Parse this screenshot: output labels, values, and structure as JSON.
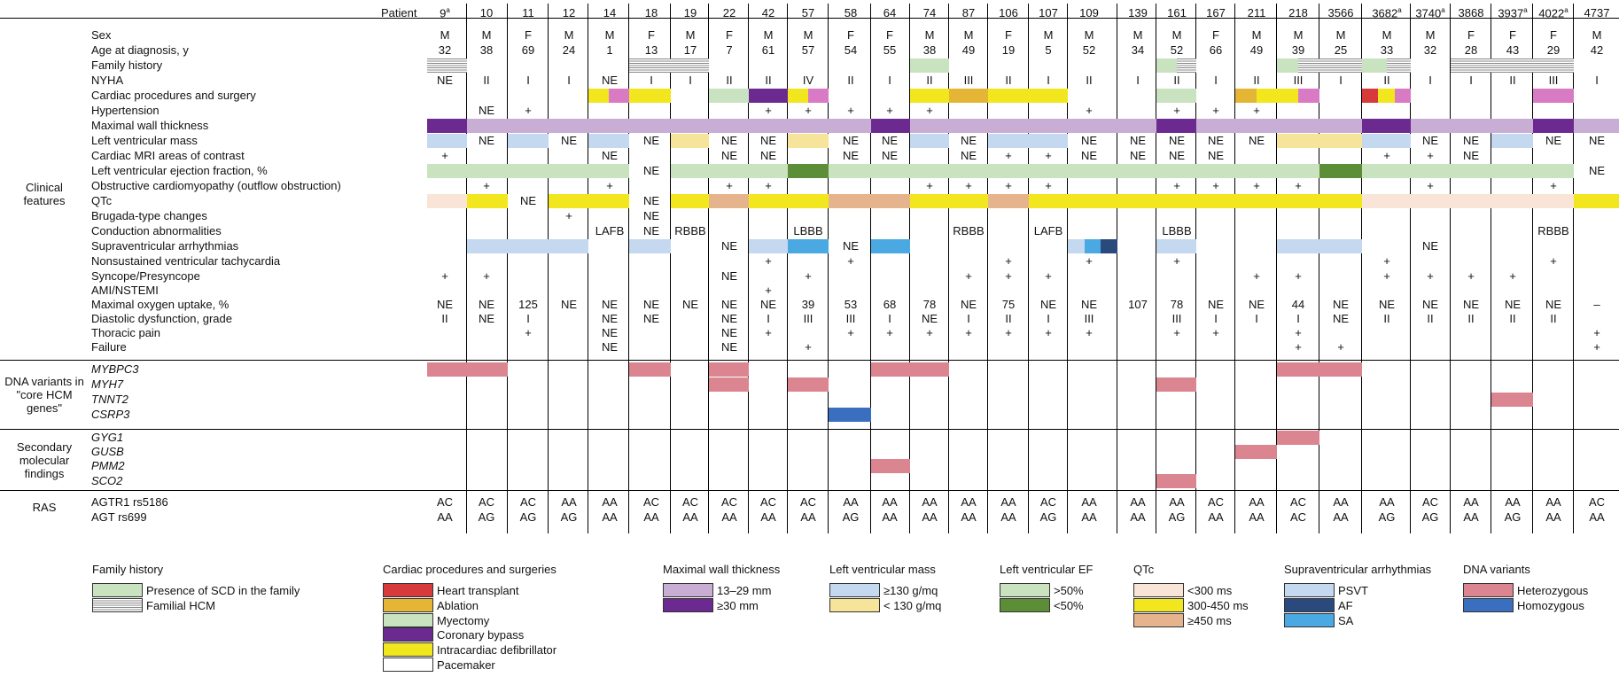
{
  "patient_label": "Patient",
  "patients": [
    "9",
    "10",
    "11",
    "12",
    "14",
    "18",
    "19",
    "22",
    "42",
    "57",
    "58",
    "64",
    "74",
    "87",
    "106",
    "107",
    "109",
    "139",
    "161",
    "167",
    "211",
    "218",
    "3566",
    "3682",
    "3740",
    "3868",
    "3937",
    "4022",
    "4737"
  ],
  "patient_superscripts": {
    "9": "a",
    "3682": "a",
    "3740": "a",
    "3937": "a",
    "4022": "a"
  },
  "colors": {
    "heterozygous": "#da8590",
    "homozygous": "#3a6fc0",
    "mwt_13_29": "#c8aed5",
    "mwt_ge30": "#6c2a90",
    "lvm_ge130": "#c4d8ef",
    "lvm_lt130": "#f5e49a",
    "ef_gt50": "#c9e2c0",
    "ef_lt50": "#5c8e38",
    "qtc_lt300": "#f9e5d7",
    "qtc_300_450": "#f2e71e",
    "qtc_ge450": "#e6b48c",
    "psvt": "#c4d8ef",
    "af": "#2a4a7e",
    "sa": "#4aa8e2",
    "transplant": "#d63a3a",
    "ablation": "#e5b536",
    "myectomy": "#c9e2c0",
    "bypass": "#6c2a90",
    "defibrillator": "#f2e71e",
    "pacemaker": "#d87bc4"
  },
  "groups": [
    {
      "id": "clinical",
      "lines": [
        "Clinical",
        "features"
      ]
    },
    {
      "id": "dna",
      "lines": [
        "DNA variants in",
        "\"core HCM",
        "genes\""
      ]
    },
    {
      "id": "secondary",
      "lines": [
        "Secondary",
        "molecular",
        "findings"
      ]
    },
    {
      "id": "ras",
      "lines": [
        "RAS"
      ]
    }
  ],
  "rows": {
    "sex": "Sex",
    "age": "Age at diagnosis, y",
    "family": "Family history",
    "nyha": "NYHA",
    "procedures": "Cardiac procedures and surgery",
    "hypertension": "Hypertension",
    "mwt": "Maximal wall thickness",
    "lvm": "Left ventricular mass",
    "mri": "Cardiac MRI areas of contrast",
    "lvef": "Left ventricular ejection fraction, %",
    "obstructive": "Obstructive cardiomyopathy (outflow obstruction)",
    "qtc": "QTc",
    "brugada": "Brugada-type changes",
    "conduction": "Conduction abnormalities",
    "svt": "Supraventricular arrhythmias",
    "nsvt": "Nonsustained ventricular tachycardia",
    "syncope": "Syncope/Presyncope",
    "ami": "AMI/NSTEMI",
    "vo2": "Maximal oxygen uptake, %",
    "diastolic": "Diastolic dysfunction, grade",
    "thoracic": "Thoracic pain",
    "failure": "Failure",
    "mybpc3": "MYBPC3",
    "myh7": "MYH7",
    "tnnt2": "TNNT2",
    "csrp3": "CSRP3",
    "gyg1": "GYG1",
    "gusb": "GUSB",
    "pmm2": "PMM2",
    "sco2": "SCO2",
    "agtr1": "AGTR1 rs5186",
    "agt": "AGT rs699"
  },
  "text_values": {
    "sex": {
      "9": "M",
      "10": "M",
      "11": "F",
      "12": "M",
      "14": "M",
      "18": "F",
      "19": "M",
      "22": "F",
      "42": "M",
      "57": "M",
      "58": "F",
      "64": "F",
      "74": "M",
      "87": "M",
      "106": "F",
      "107": "M",
      "109": "M",
      "139": "M",
      "161": "M",
      "167": "F",
      "211": "M",
      "218": "M",
      "3566": "M",
      "3682": "M",
      "3740": "M",
      "3868": "F",
      "3937": "F",
      "4022": "F",
      "4737": "M"
    },
    "age": {
      "9": "32",
      "10": "38",
      "11": "69",
      "12": "24",
      "14": "1",
      "18": "13",
      "19": "17",
      "22": "7",
      "42": "61",
      "57": "57",
      "58": "54",
      "64": "55",
      "74": "38",
      "87": "49",
      "106": "19",
      "107": "5",
      "109": "52",
      "139": "34",
      "161": "52",
      "167": "66",
      "211": "49",
      "218": "39",
      "3566": "25",
      "3682": "33",
      "3740": "32",
      "3868": "28",
      "3937": "43",
      "4022": "29",
      "4737": "42"
    },
    "nyha": {
      "9": "NE",
      "10": "II",
      "11": "I",
      "12": "I",
      "14": "NE",
      "18": "I",
      "19": "I",
      "22": "II",
      "42": "II",
      "57": "IV",
      "58": "II",
      "64": "I",
      "74": "II",
      "87": "III",
      "106": "II",
      "107": "I",
      "109": "II",
      "139": "I",
      "161": "II",
      "167": "I",
      "211": "II",
      "218": "III",
      "3566": "I",
      "3682": "II",
      "3740": "I",
      "3868": "I",
      "3937": "II",
      "4022": "III",
      "4737": "I"
    },
    "hypertension": {
      "10": "NE",
      "11": "+",
      "42": "+",
      "57": "+",
      "58": "+",
      "64": "+",
      "74": "+",
      "109": "+",
      "161": "+",
      "167": "+",
      "211": "+"
    },
    "lvm": {
      "10": "NE",
      "12": "NE",
      "18": "NE",
      "22": "NE",
      "42": "NE",
      "58": "NE",
      "64": "NE",
      "87": "NE",
      "109": "NE",
      "139": "NE",
      "161": "NE",
      "167": "NE",
      "211": "NE",
      "3740": "NE",
      "3868": "NE",
      "4022": "NE",
      "4737": "NE"
    },
    "mri": {
      "9": "+",
      "14": "NE",
      "22": "NE",
      "42": "NE",
      "58": "NE",
      "64": "NE",
      "87": "NE",
      "106": "+",
      "107": "+",
      "109": "NE",
      "139": "NE",
      "161": "NE",
      "167": "NE",
      "3682": "+",
      "3740": "+",
      "3868": "NE"
    },
    "lvef": {
      "18": "NE",
      "4737": "NE"
    },
    "obstructive": {
      "10": "+",
      "14": "+",
      "22": "+",
      "42": "+",
      "74": "+",
      "87": "+",
      "106": "+",
      "107": "+",
      "161": "+",
      "167": "+",
      "211": "+",
      "218": "+",
      "3740": "+",
      "4022": "+"
    },
    "qtc": {
      "11": "NE",
      "18": "NE"
    },
    "brugada": {
      "12": "+",
      "18": "NE"
    },
    "conduction": {
      "14": "LAFB",
      "18": "NE",
      "19": "RBBB",
      "57": "LBBB",
      "87": "RBBB",
      "107": "LAFB",
      "161": "LBBB",
      "4022": "RBBB"
    },
    "svt": {
      "22": "NE",
      "58": "NE",
      "3740": "NE"
    },
    "nsvt": {
      "42": "+",
      "58": "+",
      "106": "+",
      "109": "+",
      "161": "+",
      "3682": "+",
      "4022": "+"
    },
    "syncope": {
      "9": "+",
      "10": "+",
      "22": "NE",
      "57": "+",
      "87": "+",
      "106": "+",
      "107": "+",
      "211": "+",
      "218": "+",
      "3682": "+",
      "3740": "+",
      "3868": "+",
      "3937": "+"
    },
    "ami": {
      "42": "+"
    },
    "vo2": {
      "9": "NE",
      "10": "NE",
      "11": "125",
      "12": "NE",
      "14": "NE",
      "18": "NE",
      "19": "NE",
      "22": "NE",
      "42": "NE",
      "57": "39",
      "58": "53",
      "64": "68",
      "74": "78",
      "87": "NE",
      "106": "75",
      "107": "NE",
      "109": "NE",
      "139": "107",
      "161": "78",
      "167": "NE",
      "211": "NE",
      "218": "44",
      "3566": "NE",
      "3682": "NE",
      "3740": "NE",
      "3868": "NE",
      "3937": "NE",
      "4022": "NE",
      "4737": "–"
    },
    "diastolic": {
      "9": "II",
      "10": "NE",
      "11": "I",
      "14": "NE",
      "18": "NE",
      "22": "NE",
      "42": "I",
      "57": "III",
      "58": "III",
      "64": "I",
      "74": "NE",
      "87": "I",
      "106": "II",
      "107": "I",
      "109": "III",
      "161": "III",
      "167": "I",
      "211": "I",
      "218": "I",
      "3566": "NE",
      "3682": "II",
      "3740": "II",
      "3868": "II",
      "3937": "II",
      "4022": "II"
    },
    "thoracic": {
      "11": "+",
      "14": "NE",
      "22": "NE",
      "42": "+",
      "58": "+",
      "64": "+",
      "74": "+",
      "87": "+",
      "106": "+",
      "107": "+",
      "109": "+",
      "161": "+",
      "167": "+",
      "218": "+",
      "4737": "+"
    },
    "failure": {
      "14": "NE",
      "22": "NE",
      "57": "+",
      "218": "+",
      "3566": "+",
      "4737": "+"
    },
    "agtr1": {
      "9": "AC",
      "10": "AC",
      "11": "AC",
      "12": "AA",
      "14": "AA",
      "18": "AC",
      "19": "AC",
      "22": "AC",
      "42": "AC",
      "57": "AC",
      "58": "AA",
      "64": "AA",
      "74": "AA",
      "87": "AA",
      "106": "AA",
      "107": "AC",
      "109": "AA",
      "139": "AA",
      "161": "AA",
      "167": "AC",
      "211": "AA",
      "218": "AC",
      "3566": "AA",
      "3682": "AA",
      "3740": "AC",
      "3868": "AA",
      "3937": "AA",
      "4022": "AA",
      "4737": "AC"
    },
    "agt": {
      "9": "AA",
      "10": "AG",
      "11": "AG",
      "12": "AG",
      "14": "AA",
      "18": "AA",
      "19": "AA",
      "22": "AA",
      "42": "AA",
      "57": "AA",
      "58": "AG",
      "64": "AA",
      "74": "AA",
      "87": "AA",
      "106": "AA",
      "107": "AG",
      "109": "AA",
      "139": "AA",
      "161": "AG",
      "167": "AA",
      "211": "AA",
      "218": "AC",
      "3566": "AA",
      "3682": "AG",
      "3740": "AG",
      "3868": "AA",
      "3937": "AG",
      "4022": "AA",
      "4737": "AA"
    }
  },
  "color_values": {
    "family": {
      "9": [
        "hatch"
      ],
      "18": [
        "hatch"
      ],
      "19": [
        "hatch"
      ],
      "74": [
        "myectomy"
      ],
      "161": [
        "myectomy",
        "hatch"
      ],
      "218": [
        "myectomy",
        "hatch"
      ],
      "3566": [
        "hatch"
      ],
      "3682": [
        "myectomy",
        "hatch"
      ],
      "3868": [
        "hatch"
      ],
      "3937": [
        "hatch"
      ],
      "4022": [
        "hatch"
      ]
    },
    "procedures": {
      "14": [
        "defibrillator",
        "pacemaker"
      ],
      "18": [
        "defibrillator"
      ],
      "22": [
        "myectomy"
      ],
      "42": [
        "bypass"
      ],
      "57": [
        "defibrillator",
        "pacemaker"
      ],
      "74": [
        "defibrillator"
      ],
      "87": [
        "ablation"
      ],
      "106": [
        "defibrillator"
      ],
      "107": [
        "defibrillator"
      ],
      "161": [
        "myectomy"
      ],
      "211": [
        "ablation",
        "defibrillator"
      ],
      "218": [
        "defibrillator",
        "pacemaker"
      ],
      "3682": [
        "transplant",
        "defibrillator",
        "pacemaker"
      ],
      "4022": [
        "pacemaker"
      ]
    },
    "mwt": {
      "9": [
        "mwt_ge30"
      ],
      "10": [
        "mwt_13_29"
      ],
      "11": [
        "mwt_13_29"
      ],
      "12": [
        "mwt_13_29"
      ],
      "14": [
        "mwt_13_29"
      ],
      "18": [
        "mwt_13_29"
      ],
      "19": [
        "mwt_13_29"
      ],
      "22": [
        "mwt_13_29"
      ],
      "42": [
        "mwt_13_29"
      ],
      "57": [
        "mwt_13_29"
      ],
      "58": [
        "mwt_13_29"
      ],
      "64": [
        "mwt_ge30"
      ],
      "74": [
        "mwt_13_29"
      ],
      "87": [
        "mwt_13_29"
      ],
      "106": [
        "mwt_13_29"
      ],
      "107": [
        "mwt_13_29"
      ],
      "109": [
        "mwt_13_29"
      ],
      "139": [
        "mwt_13_29"
      ],
      "161": [
        "mwt_ge30"
      ],
      "167": [
        "mwt_13_29"
      ],
      "211": [
        "mwt_13_29"
      ],
      "218": [
        "mwt_13_29"
      ],
      "3566": [
        "mwt_13_29"
      ],
      "3682": [
        "mwt_ge30"
      ],
      "3740": [
        "mwt_13_29"
      ],
      "3868": [
        "mwt_13_29"
      ],
      "3937": [
        "mwt_13_29"
      ],
      "4022": [
        "mwt_ge30"
      ],
      "4737": [
        "mwt_13_29"
      ]
    },
    "lvm": {
      "9": [
        "lvm_ge130"
      ],
      "11": [
        "lvm_ge130"
      ],
      "14": [
        "lvm_ge130"
      ],
      "19": [
        "lvm_lt130"
      ],
      "57": [
        "lvm_lt130"
      ],
      "74": [
        "lvm_ge130"
      ],
      "106": [
        "lvm_ge130"
      ],
      "107": [
        "lvm_ge130"
      ],
      "218": [
        "lvm_lt130"
      ],
      "3566": [
        "lvm_lt130"
      ],
      "3682": [
        "lvm_ge130"
      ],
      "3937": [
        "lvm_ge130"
      ]
    },
    "lvef": {
      "9": [
        "ef_gt50"
      ],
      "10": [
        "ef_gt50"
      ],
      "11": [
        "ef_gt50"
      ],
      "12": [
        "ef_gt50"
      ],
      "14": [
        "ef_gt50"
      ],
      "19": [
        "ef_gt50"
      ],
      "22": [
        "ef_gt50"
      ],
      "42": [
        "ef_gt50"
      ],
      "57": [
        "ef_lt50"
      ],
      "58": [
        "ef_gt50"
      ],
      "64": [
        "ef_gt50"
      ],
      "74": [
        "ef_gt50"
      ],
      "87": [
        "ef_gt50"
      ],
      "106": [
        "ef_gt50"
      ],
      "107": [
        "ef_gt50"
      ],
      "109": [
        "ef_gt50"
      ],
      "139": [
        "ef_gt50"
      ],
      "161": [
        "ef_gt50"
      ],
      "167": [
        "ef_gt50"
      ],
      "211": [
        "ef_gt50"
      ],
      "218": [
        "ef_gt50"
      ],
      "3566": [
        "ef_lt50"
      ],
      "3682": [
        "ef_gt50"
      ],
      "3740": [
        "ef_gt50"
      ],
      "3868": [
        "ef_gt50"
      ],
      "3937": [
        "ef_gt50"
      ],
      "4022": [
        "ef_gt50"
      ]
    },
    "qtc": {
      "9": [
        "qtc_lt300"
      ],
      "10": [
        "qtc_300_450"
      ],
      "12": [
        "qtc_300_450"
      ],
      "14": [
        "qtc_300_450"
      ],
      "19": [
        "qtc_300_450"
      ],
      "22": [
        "qtc_ge450"
      ],
      "42": [
        "qtc_300_450"
      ],
      "57": [
        "qtc_300_450"
      ],
      "58": [
        "qtc_ge450"
      ],
      "64": [
        "qtc_ge450"
      ],
      "74": [
        "qtc_300_450"
      ],
      "87": [
        "qtc_300_450"
      ],
      "106": [
        "qtc_ge450"
      ],
      "107": [
        "qtc_300_450"
      ],
      "109": [
        "qtc_300_450"
      ],
      "139": [
        "qtc_300_450"
      ],
      "161": [
        "qtc_300_450"
      ],
      "167": [
        "qtc_300_450"
      ],
      "211": [
        "qtc_300_450"
      ],
      "218": [
        "qtc_300_450"
      ],
      "3566": [
        "qtc_300_450"
      ],
      "3682": [
        "qtc_lt300"
      ],
      "3740": [
        "qtc_lt300"
      ],
      "3868": [
        "qtc_lt300"
      ],
      "3937": [
        "qtc_lt300"
      ],
      "4022": [
        "qtc_lt300"
      ],
      "4737": [
        "qtc_300_450"
      ]
    },
    "svt": {
      "10": [
        "psvt"
      ],
      "11": [
        "psvt"
      ],
      "12": [
        "psvt"
      ],
      "18": [
        "psvt"
      ],
      "42": [
        "psvt"
      ],
      "57": [
        "sa"
      ],
      "64": [
        "sa"
      ],
      "109": [
        "psvt",
        "sa",
        "af"
      ],
      "161": [
        "psvt"
      ],
      "218": [
        "psvt"
      ],
      "3566": [
        "psvt"
      ]
    },
    "mybpc3": {
      "9": [
        "heterozygous"
      ],
      "10": [
        "heterozygous"
      ],
      "18": [
        "heterozygous"
      ],
      "22": [
        "heterozygous"
      ],
      "64": [
        "heterozygous"
      ],
      "74": [
        "heterozygous"
      ],
      "218": [
        "heterozygous"
      ],
      "3566": [
        "heterozygous"
      ]
    },
    "myh7": {
      "22": [
        "heterozygous"
      ],
      "57": [
        "heterozygous"
      ],
      "161": [
        "heterozygous"
      ]
    },
    "tnnt2": {
      "3937": [
        "heterozygous"
      ]
    },
    "csrp3": {
      "58": [
        "homozygous"
      ]
    },
    "gyg1": {
      "218": [
        "heterozygous"
      ]
    },
    "gusb": {
      "211": [
        "heterozygous"
      ]
    },
    "pmm2": {
      "64": [
        "heterozygous"
      ]
    },
    "sco2": {
      "161": [
        "heterozygous"
      ]
    }
  },
  "legends": [
    {
      "id": "family",
      "title": "Family history",
      "items": [
        {
          "swatch": "myectomy",
          "label": "Presence of SCD in the family"
        },
        {
          "swatch": "hatch",
          "label": "Familial HCM"
        }
      ]
    },
    {
      "id": "procedures",
      "title": "Cardiac procedures and surgeries",
      "items": [
        {
          "swatch": "transplant",
          "label": "Heart transplant"
        },
        {
          "swatch": "ablation",
          "label": "Ablation"
        },
        {
          "swatch": "myectomy",
          "label": "Myectomy"
        },
        {
          "swatch": "bypass",
          "label": "Coronary bypass"
        },
        {
          "swatch": "defibrillator",
          "label": "Intracardiac defibrillator"
        },
        {
          "swatch": "white",
          "label": "Pacemaker"
        }
      ]
    },
    {
      "id": "mwt",
      "title": "Maximal wall thickness",
      "items": [
        {
          "swatch": "mwt_13_29",
          "label": "13–29 mm"
        },
        {
          "swatch": "mwt_ge30",
          "label": "≥30 mm"
        }
      ]
    },
    {
      "id": "lvm",
      "title": "Left ventricular mass",
      "items": [
        {
          "swatch": "lvm_ge130",
          "label": "≥130 g/mq"
        },
        {
          "swatch": "lvm_lt130",
          "label": "< 130 g/mq"
        }
      ]
    },
    {
      "id": "lvef",
      "title": "Left ventricular EF",
      "items": [
        {
          "swatch": "ef_gt50",
          "label": ">50%"
        },
        {
          "swatch": "ef_lt50",
          "label": "<50%"
        }
      ]
    },
    {
      "id": "qtc",
      "title": "QTc",
      "items": [
        {
          "swatch": "qtc_lt300",
          "label": "<300 ms"
        },
        {
          "swatch": "qtc_300_450",
          "label": "300-450 ms"
        },
        {
          "swatch": "qtc_ge450",
          "label": "≥450 ms"
        }
      ]
    },
    {
      "id": "svt",
      "title": "Supraventricular arrhythmias",
      "items": [
        {
          "swatch": "psvt",
          "label": "PSVT"
        },
        {
          "swatch": "af",
          "label": "AF"
        },
        {
          "swatch": "sa",
          "label": "SA"
        }
      ]
    },
    {
      "id": "dna",
      "title": "DNA variants",
      "items": [
        {
          "swatch": "heterozygous",
          "label": "Heterozygous"
        },
        {
          "swatch": "homozygous",
          "label": "Homozygous"
        }
      ]
    }
  ]
}
